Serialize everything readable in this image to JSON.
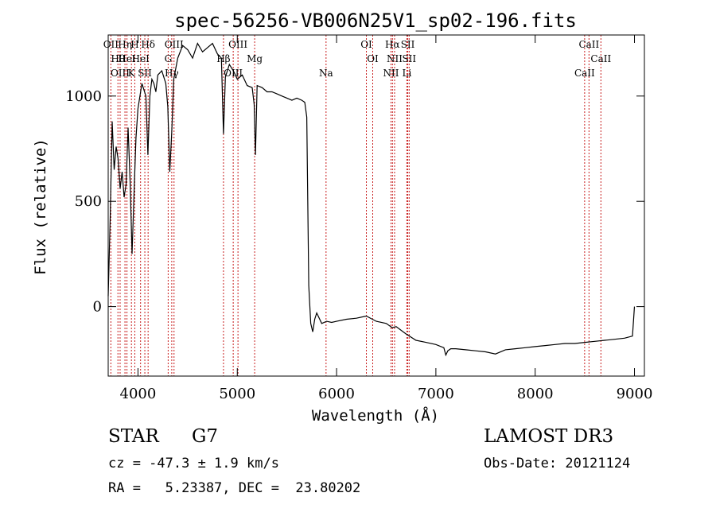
{
  "chart_data": {
    "type": "line",
    "title": "spec-56256-VB006N25V1_sp02-196.fits",
    "xlabel": "Wavelength (Å)",
    "ylabel": "Flux (relative)",
    "xlim": [
      3700,
      9100
    ],
    "ylim": [
      -330,
      1290
    ],
    "x_ticks": [
      4000,
      5000,
      6000,
      7000,
      8000,
      9000
    ],
    "y_ticks": [
      0,
      500,
      1000
    ],
    "x_tick_labels": [
      "4000",
      "5000",
      "6000",
      "7000",
      "8000",
      "9000"
    ],
    "y_tick_labels": [
      "0",
      "500",
      "1000"
    ],
    "grid": false,
    "series": [
      {
        "color": "#000000",
        "points": [
          [
            3700,
            50
          ],
          [
            3720,
            420
          ],
          [
            3740,
            880
          ],
          [
            3760,
            650
          ],
          [
            3780,
            760
          ],
          [
            3800,
            700
          ],
          [
            3820,
            560
          ],
          [
            3840,
            640
          ],
          [
            3860,
            520
          ],
          [
            3880,
            580
          ],
          [
            3900,
            850
          ],
          [
            3920,
            600
          ],
          [
            3940,
            250
          ],
          [
            3960,
            540
          ],
          [
            3980,
            800
          ],
          [
            4000,
            940
          ],
          [
            4020,
            1000
          ],
          [
            4040,
            1060
          ],
          [
            4060,
            1030
          ],
          [
            4080,
            1000
          ],
          [
            4100,
            720
          ],
          [
            4120,
            1000
          ],
          [
            4140,
            1080
          ],
          [
            4160,
            1060
          ],
          [
            4180,
            1020
          ],
          [
            4200,
            1100
          ],
          [
            4240,
            1120
          ],
          [
            4280,
            1060
          ],
          [
            4300,
            950
          ],
          [
            4320,
            640
          ],
          [
            4340,
            830
          ],
          [
            4360,
            1080
          ],
          [
            4400,
            1180
          ],
          [
            4450,
            1240
          ],
          [
            4500,
            1220
          ],
          [
            4550,
            1180
          ],
          [
            4600,
            1250
          ],
          [
            4650,
            1210
          ],
          [
            4700,
            1230
          ],
          [
            4750,
            1250
          ],
          [
            4800,
            1200
          ],
          [
            4840,
            1180
          ],
          [
            4861,
            820
          ],
          [
            4880,
            1090
          ],
          [
            4920,
            1150
          ],
          [
            4960,
            1120
          ],
          [
            5000,
            1080
          ],
          [
            5050,
            1100
          ],
          [
            5100,
            1050
          ],
          [
            5150,
            1040
          ],
          [
            5170,
            960
          ],
          [
            5183,
            720
          ],
          [
            5200,
            1050
          ],
          [
            5250,
            1040
          ],
          [
            5300,
            1020
          ],
          [
            5350,
            1020
          ],
          [
            5400,
            1010
          ],
          [
            5450,
            1000
          ],
          [
            5500,
            990
          ],
          [
            5550,
            980
          ],
          [
            5600,
            990
          ],
          [
            5650,
            980
          ],
          [
            5680,
            970
          ],
          [
            5700,
            900
          ],
          [
            5720,
            100
          ],
          [
            5740,
            -80
          ],
          [
            5760,
            -120
          ],
          [
            5780,
            -60
          ],
          [
            5800,
            -30
          ],
          [
            5850,
            -80
          ],
          [
            5900,
            -70
          ],
          [
            5950,
            -75
          ],
          [
            6000,
            -70
          ],
          [
            6100,
            -60
          ],
          [
            6200,
            -55
          ],
          [
            6300,
            -45
          ],
          [
            6400,
            -70
          ],
          [
            6500,
            -80
          ],
          [
            6560,
            -100
          ],
          [
            6600,
            -95
          ],
          [
            6700,
            -130
          ],
          [
            6800,
            -160
          ],
          [
            6900,
            -170
          ],
          [
            7000,
            -180
          ],
          [
            7080,
            -195
          ],
          [
            7100,
            -230
          ],
          [
            7120,
            -210
          ],
          [
            7150,
            -200
          ],
          [
            7200,
            -200
          ],
          [
            7300,
            -205
          ],
          [
            7400,
            -210
          ],
          [
            7500,
            -215
          ],
          [
            7600,
            -225
          ],
          [
            7700,
            -205
          ],
          [
            7800,
            -200
          ],
          [
            7900,
            -195
          ],
          [
            8000,
            -190
          ],
          [
            8100,
            -185
          ],
          [
            8200,
            -180
          ],
          [
            8300,
            -175
          ],
          [
            8400,
            -175
          ],
          [
            8500,
            -170
          ],
          [
            8600,
            -165
          ],
          [
            8700,
            -160
          ],
          [
            8800,
            -155
          ],
          [
            8900,
            -150
          ],
          [
            8980,
            -140
          ],
          [
            9000,
            0
          ]
        ]
      }
    ],
    "lines": [
      {
        "x": 3727,
        "label": "OII"
      },
      {
        "x": 3798,
        "label": "Hθ"
      },
      {
        "x": 3820,
        "label": "OIII"
      },
      {
        "x": 3869,
        "label": "Hη"
      },
      {
        "x": 3889,
        "label": "HeI"
      },
      {
        "x": 3934,
        "label": "K"
      },
      {
        "x": 3968,
        "label": "H"
      },
      {
        "x": 4026,
        "label": "HeI"
      },
      {
        "x": 4069,
        "label": "SII"
      },
      {
        "x": 4102,
        "label": "Hδ"
      },
      {
        "x": 4304,
        "label": "G"
      },
      {
        "x": 4340,
        "label": "Hγ"
      },
      {
        "x": 4363,
        "label": "OIII"
      },
      {
        "x": 4861,
        "label": "Hβ"
      },
      {
        "x": 4959,
        "label": "OIII"
      },
      {
        "x": 5007,
        "label": "OIII"
      },
      {
        "x": 5175,
        "label": "Mg"
      },
      {
        "x": 5894,
        "label": "Na"
      },
      {
        "x": 6300,
        "label": "OI"
      },
      {
        "x": 6364,
        "label": "OI"
      },
      {
        "x": 6548,
        "label": "NII"
      },
      {
        "x": 6563,
        "label": "Hα"
      },
      {
        "x": 6584,
        "label": "NII"
      },
      {
        "x": 6708,
        "label": "Li"
      },
      {
        "x": 6717,
        "label": "SII"
      },
      {
        "x": 6731,
        "label": "SII"
      },
      {
        "x": 8498,
        "label": "CaII"
      },
      {
        "x": 8542,
        "label": "CaII"
      },
      {
        "x": 8662,
        "label": "CaII"
      }
    ]
  },
  "info": {
    "object_class": "STAR",
    "subclass": "G7",
    "cz": "cz = -47.3 ± 1.9 km/s",
    "coords": "RA =   5.23387, DEC =  23.80202",
    "survey": "LAMOST DR3",
    "obs_date": "Obs-Date: 20121124"
  }
}
